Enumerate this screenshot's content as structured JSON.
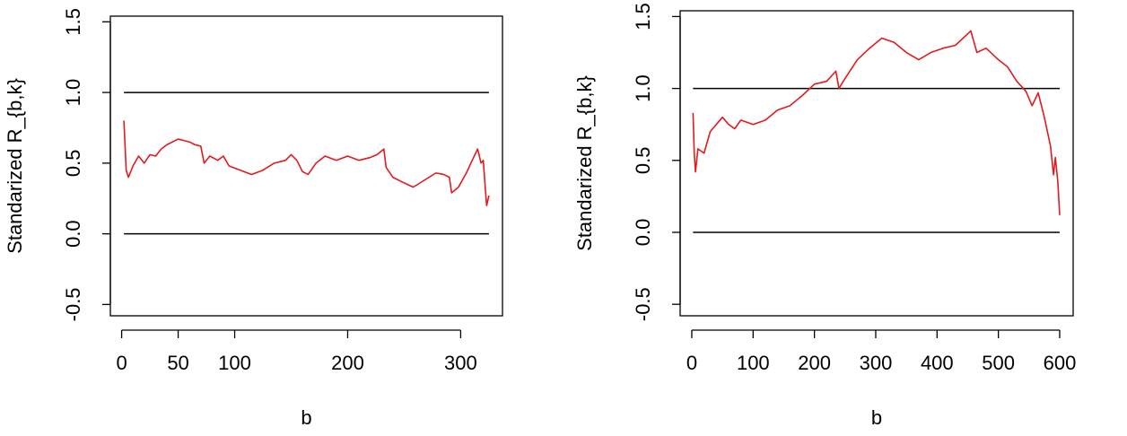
{
  "chart_data": [
    {
      "type": "line",
      "x_label": "b",
      "y_label": "Standarized R_{b,k}",
      "xlim": [
        -10,
        337
      ],
      "ylim": [
        -0.58,
        1.54
      ],
      "xticks": [
        0,
        50,
        100,
        200,
        300
      ],
      "yticks": [
        -0.5,
        {
          "value": 0,
          "label": "0.0"
        },
        0.5,
        {
          "value": 1,
          "label": "1.0"
        },
        1.5
      ],
      "hlines": [
        0,
        1
      ],
      "hline_color": "#000000",
      "x": [
        2,
        4,
        6,
        10,
        15,
        20,
        25,
        30,
        35,
        40,
        45,
        50,
        55,
        60,
        65,
        70,
        73,
        78,
        85,
        90,
        95,
        105,
        115,
        125,
        135,
        145,
        150,
        155,
        160,
        165,
        172,
        180,
        190,
        200,
        210,
        220,
        226,
        232,
        234,
        240,
        250,
        258,
        268,
        278,
        285,
        290,
        292,
        298,
        305,
        312,
        315,
        318,
        320,
        322,
        323,
        325
      ],
      "series": [
        {
          "color": "#e31a1c",
          "values": [
            0.8,
            0.45,
            0.4,
            0.48,
            0.55,
            0.5,
            0.56,
            0.55,
            0.6,
            0.63,
            0.65,
            0.67,
            0.66,
            0.65,
            0.63,
            0.62,
            0.5,
            0.55,
            0.52,
            0.55,
            0.48,
            0.45,
            0.42,
            0.45,
            0.5,
            0.52,
            0.56,
            0.52,
            0.44,
            0.42,
            0.5,
            0.55,
            0.52,
            0.55,
            0.52,
            0.54,
            0.56,
            0.6,
            0.47,
            0.4,
            0.36,
            0.33,
            0.38,
            0.43,
            0.42,
            0.4,
            0.29,
            0.33,
            0.43,
            0.55,
            0.6,
            0.5,
            0.52,
            0.3,
            0.2,
            0.27
          ]
        }
      ]
    },
    {
      "type": "line",
      "x_label": "b",
      "y_label": "Standarized R_{b,k}",
      "xlim": [
        -19,
        622
      ],
      "ylim": [
        -0.58,
        1.54
      ],
      "xticks": [
        0,
        100,
        200,
        300,
        400,
        500,
        600
      ],
      "yticks": [
        -0.5,
        {
          "value": 0,
          "label": "0.0"
        },
        0.5,
        {
          "value": 1,
          "label": "1.0"
        },
        1.5
      ],
      "hlines": [
        0,
        1
      ],
      "hline_color": "#000000",
      "x": [
        2,
        4,
        6,
        10,
        20,
        30,
        40,
        50,
        60,
        70,
        80,
        100,
        120,
        140,
        160,
        180,
        200,
        220,
        235,
        240,
        250,
        270,
        290,
        310,
        330,
        350,
        370,
        390,
        410,
        430,
        450,
        455,
        465,
        480,
        500,
        515,
        530,
        545,
        555,
        565,
        575,
        585,
        590,
        593,
        597,
        600
      ],
      "series": [
        {
          "color": "#e31a1c",
          "values": [
            0.83,
            0.55,
            0.42,
            0.58,
            0.55,
            0.7,
            0.75,
            0.8,
            0.75,
            0.72,
            0.78,
            0.75,
            0.78,
            0.85,
            0.88,
            0.95,
            1.03,
            1.05,
            1.12,
            1.0,
            1.07,
            1.2,
            1.28,
            1.35,
            1.32,
            1.25,
            1.2,
            1.25,
            1.28,
            1.3,
            1.38,
            1.4,
            1.25,
            1.28,
            1.2,
            1.15,
            1.05,
            0.98,
            0.88,
            0.97,
            0.8,
            0.6,
            0.4,
            0.52,
            0.35,
            0.12
          ]
        }
      ]
    }
  ]
}
